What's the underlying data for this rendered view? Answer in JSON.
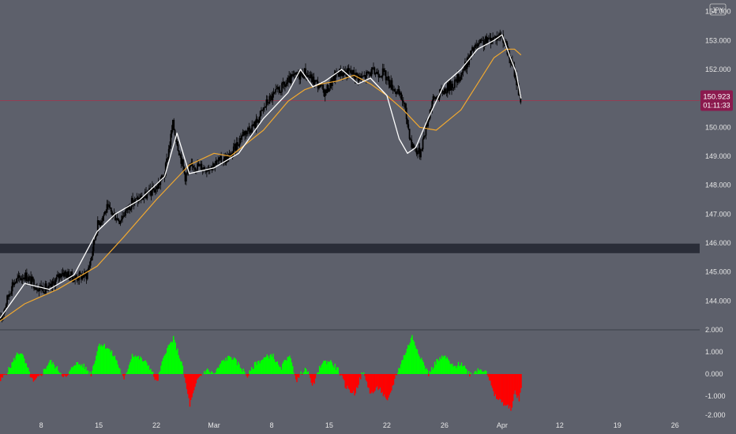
{
  "currency": "JPY",
  "colors": {
    "background": "#5d606b",
    "candle": "#000000",
    "fast_ma": "#ffffff",
    "slow_ma": "#f0a830",
    "zone": "#2a2d38",
    "price_line": "#a6334d",
    "price_tag": "#8b1a4e",
    "osc_pos": "#00ff00",
    "osc_neg": "#ff0000",
    "axis_text": "#e6e6e6"
  },
  "price_tag": {
    "value": "150.923",
    "countdown": "01:11:33"
  },
  "chart_data": [
    {
      "type": "candlestick",
      "yticks": [
        "144.000",
        "145.000",
        "146.000",
        "147.000",
        "148.000",
        "149.000",
        "150.000",
        "151.000",
        "152.000",
        "153.000",
        "154.000"
      ],
      "ylim": [
        143.0,
        154.4
      ],
      "x_tick_labels": [
        "8",
        "15",
        "22",
        "Mar",
        "8",
        "15",
        "22",
        "26",
        "Apr",
        "12",
        "19",
        "26"
      ],
      "x_tick_days": [
        8,
        15,
        22,
        29,
        36,
        43,
        50,
        57,
        64,
        71,
        78,
        85
      ],
      "x_range_days": [
        3,
        88
      ],
      "data_end_day": 66.3,
      "zone": [
        145.65,
        145.98
      ],
      "current_price": 150.923,
      "price_path_days": [
        3,
        4.5,
        6,
        7.5,
        9,
        10.5,
        12,
        13.5,
        14,
        14.8,
        16,
        17.5,
        19,
        20.5,
        22,
        23,
        24,
        25.5,
        26.5,
        28,
        29.5,
        31,
        32.5,
        34,
        35.5,
        37,
        38.5,
        40,
        41.5,
        42.5,
        44,
        45.5,
        47,
        48,
        49.5,
        51,
        52,
        53,
        54,
        55.5,
        57,
        58.5,
        59.5,
        60.5,
        61.5,
        63,
        64,
        65,
        65.5,
        66.3
      ],
      "price_path": [
        143.3,
        144.6,
        144.9,
        144.5,
        144.4,
        145.0,
        144.8,
        144.9,
        145.4,
        146.6,
        147.2,
        146.8,
        147.4,
        147.6,
        147.9,
        148.4,
        150.1,
        148.3,
        148.7,
        148.6,
        148.8,
        149.0,
        149.8,
        150.1,
        150.9,
        151.3,
        151.7,
        151.9,
        151.5,
        151.2,
        151.9,
        151.9,
        151.7,
        151.9,
        151.9,
        151.3,
        150.9,
        149.4,
        149.1,
        150.9,
        151.3,
        151.6,
        152.1,
        152.7,
        152.9,
        153.1,
        153.2,
        152.3,
        151.9,
        150.9
      ],
      "fast_ma_days": [
        3,
        6,
        9,
        12,
        14.8,
        17,
        20,
        23,
        24.5,
        26,
        29,
        32,
        35,
        38,
        39.5,
        41,
        42.5,
        44.5,
        46.5,
        48,
        50,
        51.5,
        52.5,
        53.5,
        55,
        57,
        59,
        61,
        63,
        64,
        65,
        65.7,
        66.3
      ],
      "fast_ma": [
        143.4,
        144.6,
        144.4,
        144.9,
        146.4,
        147.0,
        147.5,
        148.3,
        149.8,
        148.4,
        148.6,
        149.1,
        150.3,
        151.2,
        152.0,
        151.4,
        151.6,
        152.0,
        151.5,
        151.7,
        151.1,
        149.6,
        149.1,
        149.3,
        150.3,
        151.5,
        152.0,
        152.7,
        153.0,
        153.2,
        152.4,
        151.9,
        151.0
      ],
      "slow_ma_days": [
        3,
        6,
        10,
        14.8,
        18,
        22,
        26,
        29,
        31,
        35,
        38,
        40,
        42,
        44,
        46,
        48,
        50,
        52,
        54,
        56,
        59,
        61,
        63,
        64.5,
        65.5,
        66.3
      ],
      "slow_ma": [
        143.3,
        143.9,
        144.4,
        145.2,
        146.2,
        147.5,
        148.7,
        149.1,
        149.0,
        149.9,
        150.9,
        151.3,
        151.5,
        151.6,
        151.8,
        151.5,
        151.1,
        150.6,
        150.0,
        149.9,
        150.6,
        151.5,
        152.4,
        152.7,
        152.7,
        152.5
      ]
    },
    {
      "type": "area",
      "yticks": [
        "2.000",
        "1.000",
        "0.000",
        "-1.000",
        "-2.000"
      ],
      "ylim": [
        -2.0,
        2.0
      ],
      "osc_days": [
        3,
        4,
        5,
        5.5,
        6,
        7,
        8,
        9,
        10,
        11,
        12,
        13,
        14,
        15,
        16,
        17,
        18,
        19,
        20,
        21,
        22,
        23,
        24,
        25,
        26,
        27,
        28,
        29,
        30,
        31,
        32,
        33,
        34,
        35,
        36,
        37,
        38,
        39,
        40,
        41,
        42,
        43,
        44,
        45,
        46,
        47,
        48,
        49,
        50,
        51,
        52,
        53,
        54,
        55,
        56,
        57,
        58,
        59,
        60,
        61,
        62,
        63,
        64,
        65,
        65.5,
        66,
        66.3
      ],
      "osc": [
        -0.3,
        0.2,
        0.9,
        1.0,
        0.5,
        -0.4,
        0.0,
        0.6,
        0.2,
        -0.2,
        0.5,
        0.4,
        0.0,
        1.4,
        1.2,
        0.7,
        -0.3,
        0.9,
        0.7,
        0.4,
        -0.4,
        1.0,
        1.6,
        0.5,
        -1.4,
        -0.2,
        0.2,
        0.0,
        0.6,
        0.8,
        0.4,
        -0.1,
        0.5,
        0.7,
        0.9,
        0.2,
        0.9,
        -0.3,
        0.3,
        -0.5,
        0.5,
        0.6,
        0.2,
        -0.6,
        -0.9,
        0.1,
        -0.9,
        -0.6,
        -1.3,
        -0.1,
        0.8,
        1.7,
        0.8,
        0.0,
        0.6,
        0.8,
        0.3,
        0.5,
        0.0,
        0.2,
        0.2,
        -1.0,
        -1.3,
        -1.6,
        -0.8,
        -1.2,
        -0.4
      ]
    }
  ]
}
